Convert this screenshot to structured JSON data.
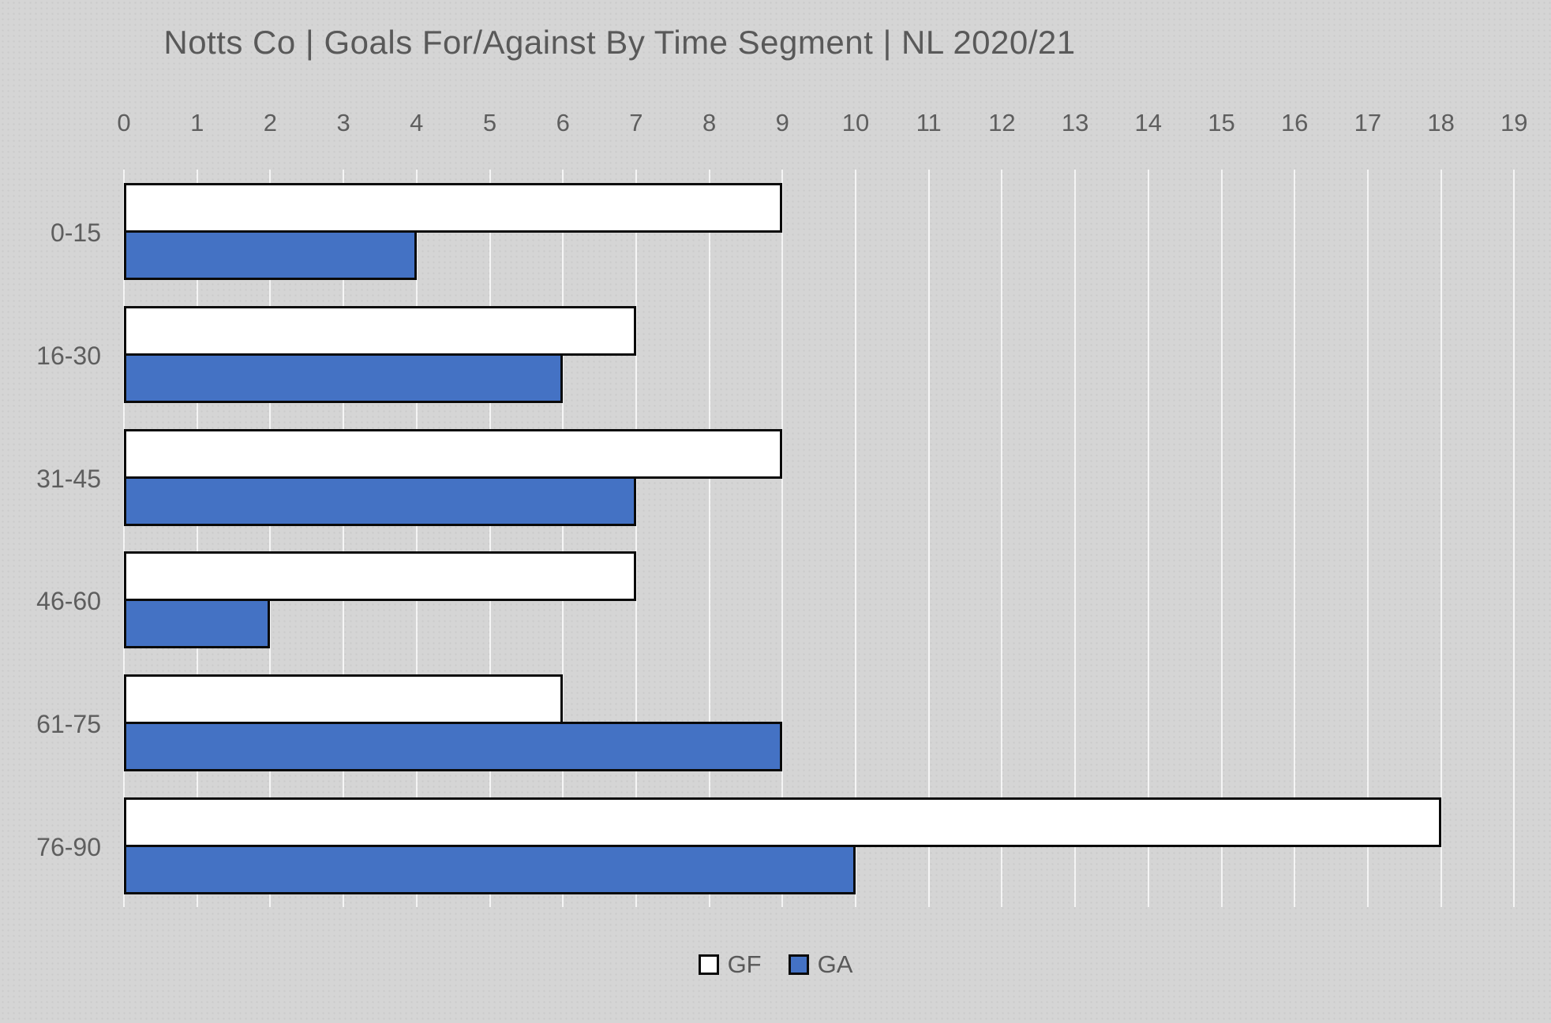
{
  "title": "Notts Co | Goals For/Against By Time Segment | NL 2020/21",
  "chart_data": {
    "type": "bar",
    "orientation": "horizontal",
    "title": "Notts Co | Goals For/Against By Time Segment | NL 2020/21",
    "categories": [
      "0-15",
      "16-30",
      "31-45",
      "46-60",
      "61-75",
      "76-90"
    ],
    "series": [
      {
        "name": "GF",
        "color": "#ffffff",
        "values": [
          9,
          7,
          9,
          7,
          6,
          18
        ]
      },
      {
        "name": "GA",
        "color": "#4472c4",
        "values": [
          4,
          6,
          7,
          2,
          9,
          10
        ]
      }
    ],
    "xlabel": "",
    "ylabel": "",
    "xlim": [
      0,
      19
    ],
    "xticks": [
      0,
      1,
      2,
      3,
      4,
      5,
      6,
      7,
      8,
      9,
      10,
      11,
      12,
      13,
      14,
      15,
      16,
      17,
      18,
      19
    ],
    "grid": true,
    "legend_position": "bottom"
  },
  "legend": {
    "items": [
      {
        "label": "GF",
        "color": "#ffffff"
      },
      {
        "label": "GA",
        "color": "#4472c4"
      }
    ]
  },
  "colors": {
    "background": "#d5d5d5",
    "bar_border": "#0a0a0a",
    "text": "#595959",
    "gridline": "#ececec",
    "gf_fill": "#ffffff",
    "ga_fill": "#4472c4"
  }
}
